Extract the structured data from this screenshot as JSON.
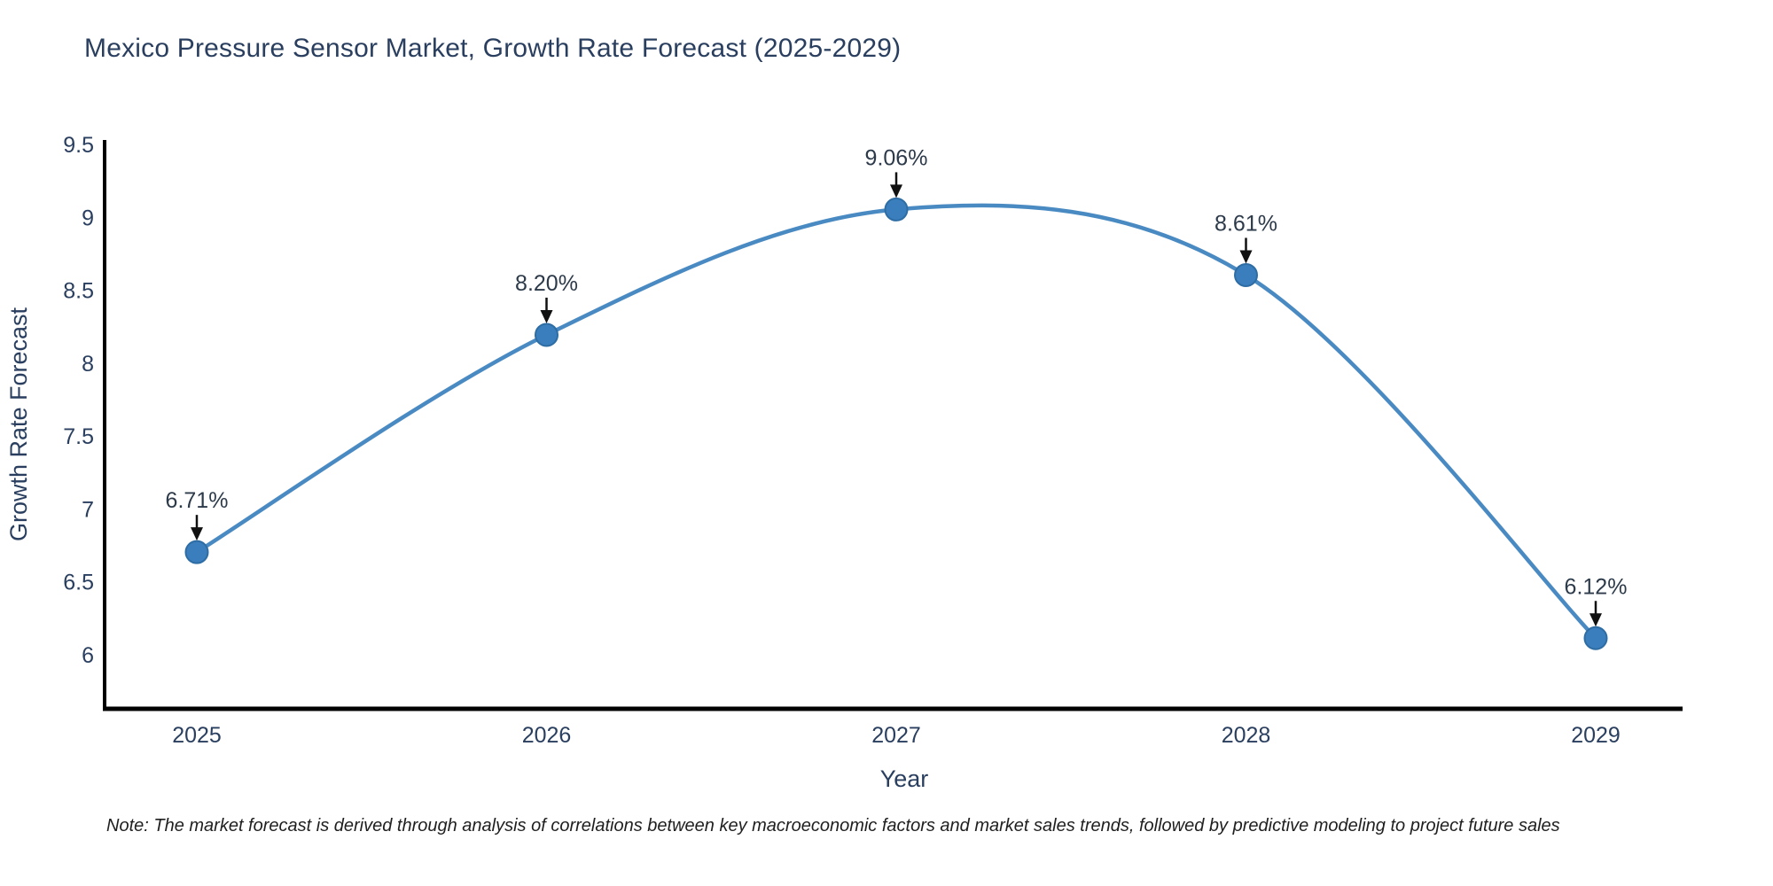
{
  "page": {
    "title": "Mexico Pressure Sensor Market, Growth Rate Forecast (2025-2029)"
  },
  "note": "Note: The market forecast is derived through analysis of correlations between key macroeconomic factors and market sales trends, followed by predictive modeling to project future sales",
  "chart_data": {
    "type": "line",
    "title": "Mexico Pressure Sensor Market, Growth Rate Forecast (2025-2029)",
    "x": [
      2025,
      2026,
      2027,
      2028,
      2029
    ],
    "x_labels": [
      "2025",
      "2026",
      "2027",
      "2028",
      "2029"
    ],
    "values": [
      6.71,
      8.2,
      9.06,
      8.61,
      6.12
    ],
    "point_labels": [
      "6.71%",
      "8.20%",
      "9.06%",
      "8.61%",
      "6.12%"
    ],
    "xlabel": "Year",
    "ylabel": "Growth Rate Forecast",
    "ytick_labels": [
      "6",
      "6.5",
      "7",
      "7.5",
      "8",
      "8.5",
      "9",
      "9.5"
    ],
    "yticks": [
      6,
      6.5,
      7,
      7.5,
      8,
      8.5,
      9,
      9.5
    ],
    "ylim": [
      5.64,
      9.54
    ],
    "grid": false,
    "legend": "none",
    "annotation_style": "value label with downward arrow to marker",
    "colors": {
      "line": "#4a8ac2",
      "marker_fill": "#3a7ebd",
      "marker_edge": "#2e6da4",
      "axis_line": "#000000",
      "tick_text": "#2a3f5f",
      "annotation_text": "#2d3a4a",
      "arrow": "#111111",
      "title_text": "#2a3f5f",
      "note_text": "#1f1f1f"
    }
  }
}
